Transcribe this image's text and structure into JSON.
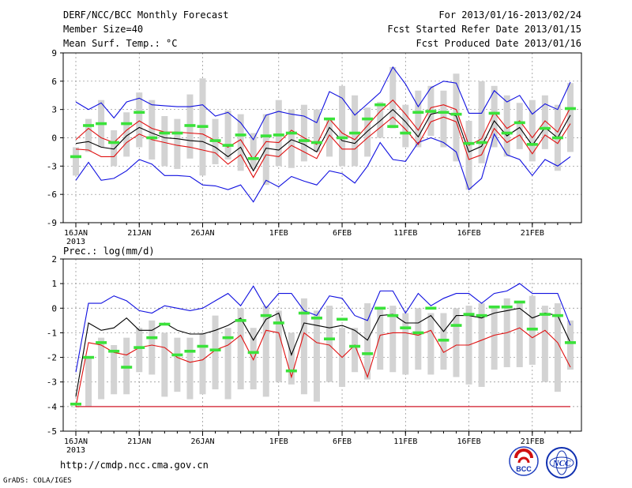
{
  "header": {
    "title": "DERF/NCC/BCC Monthly Forecast",
    "member_size": "Member Size=40",
    "variable": "Mean Surf. Temp.: °C",
    "period": "For 2013/01/16-2013/02/24",
    "started": "Fcst Started Refer Date 2013/01/15",
    "produced": "Fcst Produced Date 2013/01/16"
  },
  "footer": {
    "url": "http://cmdp.ncc.cma.gov.cn",
    "credit": "GrADS: COLA/IGES",
    "logo_bcc": "BCC",
    "logo_ncc": "NCC"
  },
  "colors": {
    "box": "#d3d3d3",
    "median": "#3ae23a",
    "mean": "#000000",
    "inner": "#e01010",
    "outer": "#1010e0"
  },
  "chart_data": [
    {
      "type": "box",
      "title": "Mean Surf. Temp.: °C",
      "ylim": [
        -9,
        9
      ],
      "yticks": [
        -9,
        -6,
        -3,
        0,
        3,
        6,
        9
      ],
      "x_start": "2013-01-16",
      "n_days": 40,
      "xtick_labels": [
        {
          "day": 0,
          "label": "16JAN",
          "sub": "2013"
        },
        {
          "day": 5,
          "label": "21JAN"
        },
        {
          "day": 10,
          "label": "26JAN"
        },
        {
          "day": 16,
          "label": "1FEB"
        },
        {
          "day": 21,
          "label": "6FEB"
        },
        {
          "day": 26,
          "label": "11FEB"
        },
        {
          "day": 31,
          "label": "16FEB"
        },
        {
          "day": 36,
          "label": "21FEB"
        }
      ],
      "box_low": [
        -4,
        -1.5,
        -1,
        -3,
        -2,
        -1,
        -2.3,
        -3,
        -3.3,
        -2.2,
        -4,
        -2.8,
        -2.3,
        -3.5,
        -3.3,
        -5,
        -3,
        -3.2,
        -2.5,
        -1.5,
        -2,
        -3,
        -3,
        -2,
        0,
        1,
        -1,
        -1,
        0.2,
        -1,
        -2.5,
        -5.5,
        -2.7,
        -1,
        -2,
        -1.2,
        -2.5,
        -1.2,
        -3.5,
        -1.5
      ],
      "box_high": [
        -1,
        2,
        4,
        0.8,
        2.7,
        4.8,
        4,
        2.3,
        2,
        4.6,
        6.3,
        2,
        2.9,
        2.5,
        0.5,
        2.5,
        4,
        3,
        3.5,
        3,
        2,
        5.5,
        4.5,
        3.2,
        3.8,
        7.5,
        3.5,
        5,
        5.5,
        5,
        6.8,
        1.8,
        6,
        5.5,
        4.5,
        3.7,
        4,
        4.5,
        3.5,
        5.8
      ],
      "median": [
        -2,
        1.3,
        1.5,
        -0.5,
        1.5,
        2.7,
        0,
        0.5,
        0.5,
        1.3,
        1.2,
        -0.3,
        -0.8,
        0.3,
        -2.2,
        0.2,
        0.3,
        0.5,
        -0.3,
        -0.5,
        2,
        0,
        0.5,
        2,
        3.5,
        1.2,
        0.5,
        2.7,
        2.8,
        2.7,
        2.5,
        -0.6,
        -0.5,
        2.6,
        0.5,
        1.6,
        -0.7,
        1,
        0,
        3.1
      ],
      "mean": [
        -0.6,
        -0.4,
        -1,
        -1.2,
        0.2,
        1.1,
        0.5,
        0,
        -0.1,
        -0.3,
        -0.4,
        -1,
        -2,
        -1,
        -3.5,
        -1.1,
        -1.3,
        -0.2,
        -0.7,
        -1.5,
        1.1,
        -0.3,
        -0.6,
        0.7,
        1.8,
        3,
        1.7,
        0.1,
        2.5,
        2.8,
        2.3,
        -1.5,
        -0.9,
        1.8,
        0.2,
        1.1,
        -0.8,
        1.1,
        0,
        2.4
      ],
      "inner_high": [
        -0.2,
        1,
        0,
        -0.5,
        0.8,
        1.8,
        1,
        0.6,
        0.6,
        0.5,
        0.4,
        -0.3,
        -1,
        -0.2,
        -2.3,
        -0.4,
        -0.5,
        0.8,
        0,
        -0.7,
        2,
        0.5,
        -0.2,
        1.3,
        2.8,
        4,
        2.5,
        0.8,
        3.2,
        3.5,
        3,
        -0.8,
        -0.1,
        2.7,
        1,
        1.8,
        0,
        1.8,
        0.6,
        3.2
      ],
      "inner_low": [
        -1.2,
        -1.3,
        -2,
        -2,
        -0.5,
        0.4,
        -0.2,
        -0.5,
        -0.8,
        -1,
        -1.3,
        -1.6,
        -2.8,
        -1.8,
        -4.2,
        -1.8,
        -2,
        -0.8,
        -1.5,
        -2.2,
        0.3,
        -1.2,
        -1.2,
        0,
        1.1,
        2.2,
        0.9,
        -0.7,
        1.7,
        2.2,
        1.7,
        -2.3,
        -1.8,
        1,
        -0.5,
        0.3,
        -1.7,
        0.3,
        -0.6,
        1.5
      ],
      "outer_high": [
        3.8,
        3,
        3.7,
        2.1,
        3.8,
        4.2,
        3.5,
        3.4,
        3.3,
        3.3,
        3.5,
        2.3,
        2.7,
        1.6,
        -0.2,
        2.4,
        2.8,
        2.5,
        2.3,
        1.6,
        4.9,
        4.2,
        2.4,
        3.6,
        4.8,
        7.5,
        5.7,
        3.3,
        5.3,
        6,
        5.8,
        2.6,
        2.6,
        5,
        3.8,
        4.5,
        2.5,
        3.6,
        3,
        5.9
      ],
      "outer_low": [
        -4.5,
        -2.6,
        -4.5,
        -4.3,
        -3.5,
        -2.3,
        -2.8,
        -4,
        -4,
        -4.1,
        -5,
        -5.1,
        -5.5,
        -5,
        -6.8,
        -4.5,
        -5.2,
        -4.1,
        -4.6,
        -5,
        -3.5,
        -3.8,
        -4.8,
        -3,
        -0.5,
        -2.3,
        -2.5,
        -0.5,
        0,
        -0.5,
        -1.5,
        -5.5,
        -4.3,
        0.4,
        -1.8,
        -2.3,
        -4,
        -2.3,
        -3,
        -2
      ]
    },
    {
      "type": "box",
      "title": "Prec.: log(mm/d)",
      "ylim": [
        -5,
        2
      ],
      "yticks": [
        -5,
        -4,
        -3,
        -2,
        -1,
        0,
        1,
        2
      ],
      "x_start": "2013-01-16",
      "n_days": 40,
      "xtick_labels": [
        {
          "day": 0,
          "label": "16JAN",
          "sub": "2013"
        },
        {
          "day": 5,
          "label": "21JAN"
        },
        {
          "day": 10,
          "label": "26JAN"
        },
        {
          "day": 16,
          "label": "1FEB"
        },
        {
          "day": 21,
          "label": "6FEB"
        },
        {
          "day": 26,
          "label": "11FEB"
        },
        {
          "day": 31,
          "label": "16FEB"
        },
        {
          "day": 36,
          "label": "21FEB"
        }
      ],
      "box_low": [
        -4,
        -4,
        -3.7,
        -3.5,
        -3.5,
        -2.6,
        -2.7,
        -3.6,
        -3.4,
        -3.7,
        -3.5,
        -3.3,
        -3.7,
        -3.3,
        -3.3,
        -3.6,
        -3,
        -3.1,
        -3.5,
        -3.8,
        -3,
        -3.2,
        -2.6,
        -2.9,
        -2.5,
        -2.6,
        -2.7,
        -2.5,
        -2.7,
        -2.5,
        -2.8,
        -3.1,
        -3.2,
        -2.5,
        -2.4,
        -2.4,
        -2.3,
        -3,
        -3.4,
        -2.5
      ],
      "box_high": [
        -4,
        -2,
        -1.2,
        -1.5,
        -1.2,
        -0.8,
        -0.5,
        -1,
        -1.2,
        -1.2,
        -1,
        -0.3,
        -0.8,
        0,
        -0.8,
        0.1,
        -0.1,
        -1,
        0.4,
        -0.1,
        0.1,
        -0.8,
        -0.8,
        0.2,
        0,
        0.1,
        -0.2,
        0,
        -0.2,
        -0.2,
        0,
        0.1,
        0.2,
        0.1,
        0.4,
        0.3,
        0.5,
        0.1,
        0.2,
        -0.5
      ],
      "median": [
        -3.9,
        -2,
        -1.4,
        -1.75,
        -2.4,
        -1.6,
        -1.2,
        -0.65,
        -1.9,
        -1.75,
        -1.55,
        -1.7,
        -1.2,
        -0.5,
        -1.8,
        -0.3,
        -0.6,
        -2.55,
        -0.2,
        -0.4,
        -1.25,
        -0.45,
        -1.55,
        -1.85,
        0,
        -0.3,
        -0.8,
        -1,
        0,
        -1.3,
        -0.7,
        -0.25,
        -0.3,
        0.05,
        0.05,
        0.25,
        -0.85,
        -0.25,
        -0.3,
        -1.4
      ],
      "mean": [
        -3.6,
        -0.6,
        -0.9,
        -0.8,
        -0.4,
        -0.9,
        -0.9,
        -0.6,
        -0.9,
        -1.05,
        -1.05,
        -0.9,
        -0.7,
        -0.4,
        -1.3,
        -0.45,
        -0.2,
        -1.9,
        -0.6,
        -0.7,
        -0.8,
        -0.7,
        -0.9,
        -1.3,
        -0.3,
        -0.25,
        -0.6,
        -0.6,
        -0.3,
        -0.95,
        -0.3,
        -0.3,
        -0.4,
        -0.2,
        -0.1,
        0,
        -0.4,
        -0.2,
        -0.3,
        -1.4
      ],
      "inner_high": [
        -4,
        -1.4,
        -1.5,
        -1.8,
        -1.9,
        -1.6,
        -1.5,
        -1.6,
        -2,
        -2.2,
        -2.1,
        -1.7,
        -1.5,
        -1.1,
        -2.1,
        -0.9,
        -1,
        -2.8,
        -1,
        -1.4,
        -1.5,
        -2,
        -1.5,
        -2.8,
        -1.1,
        -1,
        -1,
        -1.1,
        -0.9,
        -1.8,
        -1.5,
        -1.5,
        -1.3,
        -1.1,
        -1,
        -0.8,
        -1.2,
        -0.9,
        -1.4,
        -2.4
      ],
      "inner_low": [
        -4,
        -4,
        -4,
        -4,
        -4,
        -4,
        -4,
        -4,
        -4,
        -4,
        -4,
        -4,
        -4,
        -4,
        -4,
        -4,
        -4,
        -4,
        -4,
        -4,
        -4,
        -4,
        -4,
        -4,
        -4,
        -4,
        -4,
        -4,
        -4,
        -4,
        -4,
        -4,
        -4,
        -4,
        -4,
        -4,
        -4,
        -4,
        -4,
        -4
      ],
      "outer_high": [
        -2.6,
        0.2,
        0.2,
        0.5,
        0.3,
        -0.1,
        -0.2,
        0.1,
        0,
        -0.1,
        0,
        0.3,
        0.6,
        0.1,
        0.9,
        0,
        0.6,
        0.6,
        -0.1,
        -0.3,
        0.5,
        0.4,
        -0.3,
        -0.5,
        0.7,
        0.7,
        -0.2,
        0.6,
        0.1,
        0.4,
        0.6,
        0.6,
        0.2,
        0.6,
        0.7,
        1,
        0.6,
        0.6,
        0.6,
        -0.7
      ],
      "outer_low": [
        -4,
        -4,
        -4,
        -4,
        -4,
        -4,
        -4,
        -4,
        -4,
        -4,
        -4,
        -4,
        -4,
        -4,
        -4,
        -4,
        -4,
        -4,
        -4,
        -4,
        -4,
        -4,
        -4,
        -4,
        -4,
        -4,
        -4,
        -4,
        -4,
        -4,
        -4,
        -4,
        -4,
        -4,
        -4,
        -4,
        -4,
        -4,
        -4,
        -4
      ]
    }
  ]
}
